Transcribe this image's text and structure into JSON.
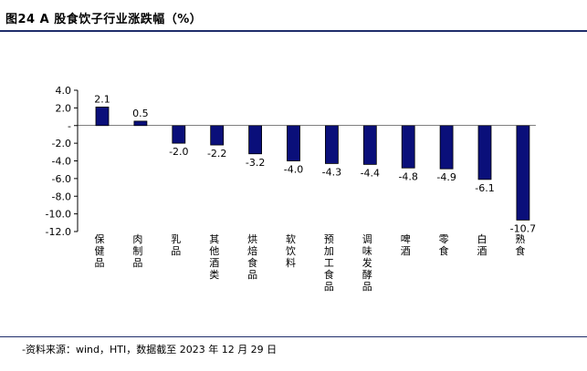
{
  "header": {
    "title": "图24 A 股食饮子行业涨跌幅（%）"
  },
  "footer": {
    "source": "-资料来源：wind，HTI，数据截至 2023 年 12 月 29 日"
  },
  "colors": {
    "bar": "#0a0f7a",
    "rule": "#1f2d6b"
  },
  "chart_data": {
    "type": "bar",
    "title": "图24 A 股食饮子行业涨跌幅（%）",
    "xlabel": "",
    "ylabel": "",
    "ylim": [
      -12.0,
      4.0
    ],
    "yticks": [
      4.0,
      2.0,
      0,
      -2.0,
      -4.0,
      -6.0,
      -8.0,
      -10.0,
      -12.0
    ],
    "ytick_labels": [
      "4.0",
      "2.0",
      "-",
      "-2.0",
      "-4.0",
      "-6.0",
      "-8.0",
      "-10.0",
      "-12.0"
    ],
    "grid": false,
    "legend": "none",
    "categories": [
      "保健品",
      "肉制品",
      "乳品",
      "其他酒类",
      "烘焙食品",
      "软饮料",
      "预加工食品",
      "调味发酵品",
      "啤酒",
      "零食",
      "白酒",
      "熟食"
    ],
    "values": [
      2.1,
      0.5,
      -2.0,
      -2.2,
      -3.2,
      -4.0,
      -4.3,
      -4.4,
      -4.8,
      -4.9,
      -6.1,
      -10.7
    ],
    "value_labels": [
      "2.1",
      "0.5",
      "-2.0",
      "-2.2",
      "-3.2",
      "-4.0",
      "-4.3",
      "-4.4",
      "-4.8",
      "-4.9",
      "-6.1",
      "-10.7"
    ]
  }
}
